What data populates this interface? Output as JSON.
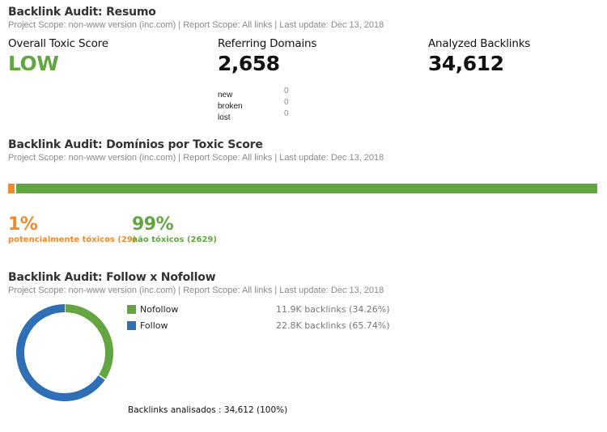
{
  "resumo": {
    "title": "Backlink Audit: Resumo",
    "subtitle": "Project Scope: non-www version (inc.com) | Report Scope: All links | Last update: Dec 13, 2018",
    "toxic_label": "Overall Toxic Score",
    "toxic_value": "LOW",
    "domains_label": "Referring Domains",
    "domains_value": "2,658",
    "domains_breakdown": [
      {
        "label": "new",
        "value": "0"
      },
      {
        "label": "broken",
        "value": "0"
      },
      {
        "label": "lost",
        "value": "0"
      }
    ],
    "backlinks_label": "Analyzed Backlinks",
    "backlinks_value": "34,612"
  },
  "dominios": {
    "title": "Backlink Audit: Domínios por Toxic Score",
    "subtitle": "Project Scope: non-www version (inc.com) | Report Scope: All links | Last update: Dec 13, 2018",
    "toxic_pct": "1%",
    "toxic_label": "potencialmente tóxicos (29)",
    "toxic_count": 29,
    "nontoxic_pct": "99%",
    "nontoxic_label": "não tóxicos (2629)",
    "nontoxic_count": 2629,
    "colors": {
      "toxic": "#f08a2b",
      "nontoxic": "#63a540"
    }
  },
  "follow": {
    "title": "Backlink Audit: Follow x Nofollow",
    "subtitle": "Project Scope: non-www version (inc.com) | Report Scope: All links | Last update: Dec 13, 2018",
    "legend": [
      {
        "label": "Nofollow",
        "value": "11.9K backlinks (34.26%)",
        "color": "#63a540"
      },
      {
        "label": "Follow",
        "value": "22.8K backlinks (65.74%)",
        "color": "#2f6fb6"
      }
    ],
    "total": "Backlinks analisados : 34,612 (100%)"
  },
  "chart_data": {
    "type": "pie",
    "categories": [
      "Nofollow",
      "Follow"
    ],
    "values": [
      34.26,
      65.74
    ],
    "colors": [
      "#63a540",
      "#2f6fb6"
    ]
  }
}
